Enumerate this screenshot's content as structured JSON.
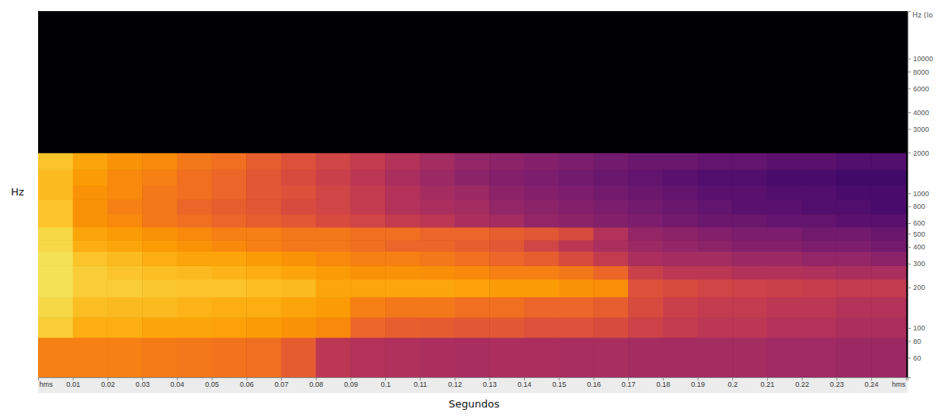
{
  "chart_data": {
    "type": "heatmap",
    "ylabel": "Hz",
    "xlabel": "Segundos",
    "y2label": "Hz (lo",
    "log": "y",
    "grid": false,
    "xlim": [
      0,
      0.2505
    ],
    "ylim": [
      43,
      22500
    ],
    "xticks": [
      {
        "value": 0,
        "label": "hms"
      },
      0.01,
      0.02,
      0.03,
      0.04,
      0.05,
      0.06,
      0.07,
      0.08,
      0.09,
      0.1,
      0.11,
      0.12,
      0.13,
      0.14,
      0.15,
      0.16,
      0.17,
      0.18,
      0.19,
      0.2,
      0.21,
      0.22,
      0.23,
      0.24,
      {
        "value": 0.25,
        "label": "hms"
      }
    ],
    "yticks": [
      60,
      80,
      100,
      200,
      300,
      400,
      500,
      600,
      800,
      1000,
      2000,
      3000,
      4000,
      6000,
      8000,
      10000
    ],
    "x_bins": [
      0,
      0.01,
      0.02,
      0.03,
      0.04,
      0.05,
      0.06,
      0.07,
      0.08,
      0.09,
      0.1,
      0.11,
      0.12,
      0.13,
      0.14,
      0.15,
      0.16,
      0.17,
      0.18,
      0.19,
      0.2,
      0.21,
      0.22,
      0.23,
      0.24,
      0.25
    ],
    "y_bins": [
      43,
      85,
      120,
      170,
      230,
      290,
      370,
      450,
      560,
      700,
      900,
      1150,
      1500,
      2000,
      22500
    ],
    "zlim": [
      0,
      100
    ],
    "cells": [
      [
        72,
        72,
        72,
        71,
        70,
        69,
        68,
        63,
        50,
        48,
        47,
        46,
        45,
        46,
        46,
        45,
        45,
        44,
        44,
        44,
        44,
        43,
        43,
        42,
        42
      ],
      [
        88,
        82,
        82,
        80,
        80,
        79,
        78,
        76,
        74,
        66,
        64,
        63,
        62,
        62,
        60,
        60,
        58,
        55,
        52,
        50,
        50,
        48,
        48,
        46,
        46
      ],
      [
        90,
        85,
        84,
        84,
        83,
        82,
        82,
        80,
        78,
        72,
        70,
        70,
        68,
        68,
        66,
        66,
        64,
        58,
        54,
        52,
        52,
        50,
        50,
        48,
        48
      ],
      [
        92,
        88,
        88,
        87,
        86,
        86,
        85,
        84,
        80,
        80,
        80,
        80,
        79,
        78,
        78,
        76,
        75,
        60,
        58,
        56,
        55,
        54,
        53,
        52,
        52
      ],
      [
        92,
        88,
        86,
        85,
        84,
        83,
        82,
        80,
        78,
        76,
        76,
        75,
        74,
        72,
        72,
        70,
        66,
        54,
        50,
        50,
        48,
        48,
        47,
        46,
        46
      ],
      [
        92,
        86,
        84,
        82,
        80,
        80,
        78,
        76,
        74,
        72,
        72,
        70,
        68,
        66,
        64,
        58,
        52,
        46,
        44,
        44,
        42,
        42,
        40,
        40,
        38
      ],
      [
        90,
        82,
        80,
        78,
        76,
        74,
        72,
        70,
        70,
        68,
        66,
        66,
        64,
        62,
        56,
        50,
        46,
        42,
        40,
        38,
        36,
        36,
        34,
        34,
        32
      ],
      [
        90,
        80,
        78,
        76,
        74,
        72,
        72,
        70,
        70,
        68,
        68,
        66,
        66,
        64,
        62,
        58,
        48,
        40,
        38,
        36,
        34,
        34,
        32,
        32,
        30
      ],
      [
        86,
        76,
        74,
        70,
        68,
        66,
        64,
        62,
        58,
        56,
        52,
        50,
        46,
        44,
        40,
        38,
        36,
        34,
        32,
        30,
        30,
        28,
        28,
        26,
        26
      ],
      [
        86,
        76,
        72,
        70,
        66,
        64,
        62,
        58,
        56,
        52,
        48,
        46,
        44,
        40,
        38,
        36,
        34,
        32,
        30,
        28,
        26,
        26,
        24,
        24,
        22
      ],
      [
        84,
        76,
        74,
        70,
        68,
        66,
        62,
        60,
        56,
        52,
        48,
        44,
        42,
        38,
        36,
        34,
        32,
        30,
        28,
        26,
        26,
        24,
        24,
        22,
        22
      ],
      [
        84,
        78,
        74,
        72,
        68,
        66,
        62,
        58,
        54,
        50,
        46,
        42,
        38,
        36,
        34,
        32,
        30,
        28,
        26,
        24,
        24,
        22,
        22,
        20,
        20
      ],
      [
        86,
        80,
        76,
        74,
        70,
        68,
        64,
        60,
        56,
        52,
        48,
        44,
        40,
        38,
        36,
        34,
        32,
        30,
        30,
        28,
        28,
        26,
        26,
        24,
        24
      ],
      [
        0,
        0,
        0,
        0,
        0,
        0,
        0,
        0,
        0,
        0,
        0,
        0,
        0,
        0,
        0,
        0,
        0,
        0,
        0,
        0,
        0,
        0,
        0,
        0,
        0
      ]
    ]
  }
}
